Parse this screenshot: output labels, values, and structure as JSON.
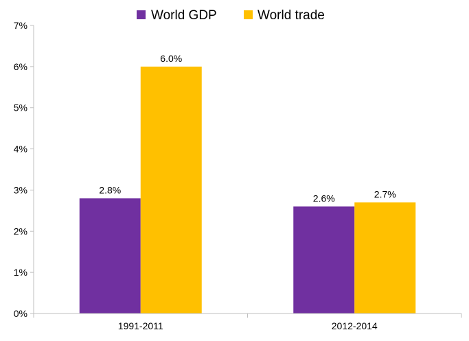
{
  "chart_data": {
    "type": "bar",
    "categories": [
      "1991-2011",
      "2012-2014"
    ],
    "series": [
      {
        "name": "World GDP",
        "values": [
          2.8,
          2.6
        ],
        "labels": [
          "2.8%",
          "2.6%"
        ],
        "color": "#7030a0"
      },
      {
        "name": "World trade",
        "values": [
          6.0,
          2.7
        ],
        "labels": [
          "6.0%",
          "2.7%"
        ],
        "color": "#ffc000"
      }
    ],
    "y_ticks": [
      "0%",
      "1%",
      "2%",
      "3%",
      "4%",
      "5%",
      "6%",
      "7%"
    ],
    "ylim": [
      0,
      7
    ],
    "grid": false,
    "legend_position": "top-center"
  }
}
